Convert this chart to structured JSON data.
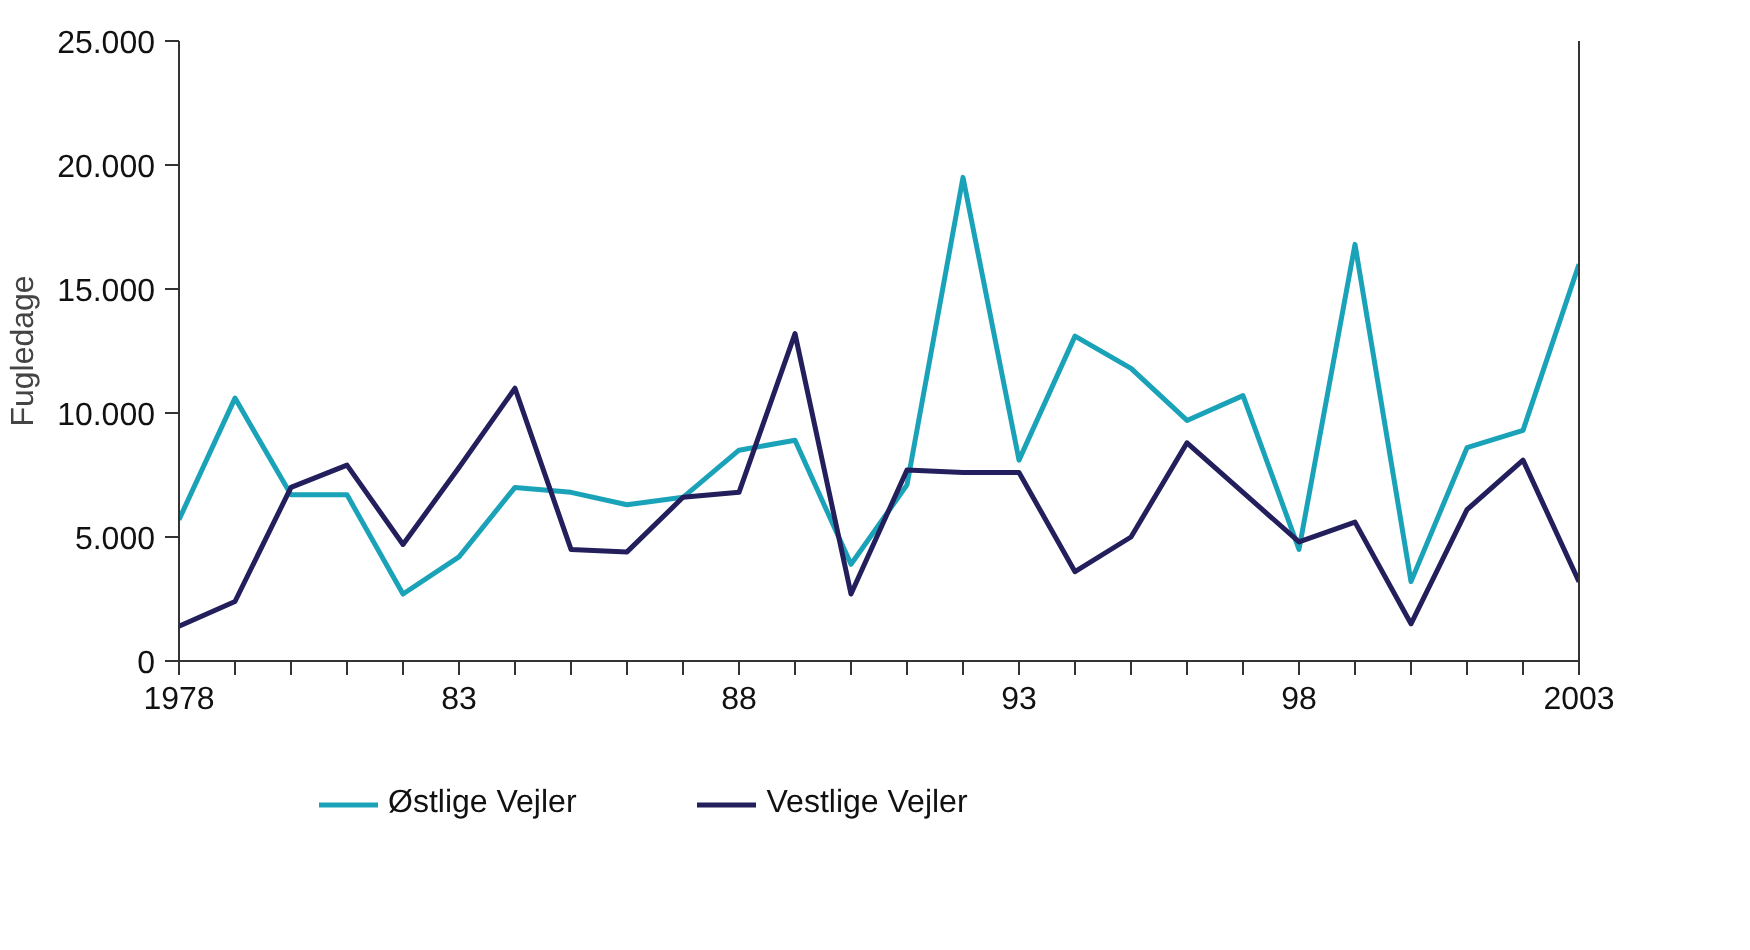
{
  "chart_data": {
    "type": "line",
    "ylabel": "Fugledage",
    "x": [
      1978,
      1979,
      1980,
      1981,
      1982,
      1983,
      1984,
      1985,
      1986,
      1987,
      1988,
      1989,
      1990,
      1991,
      1992,
      1993,
      1994,
      1995,
      1996,
      1997,
      1998,
      1999,
      2000,
      2001,
      2002,
      2003
    ],
    "series": [
      {
        "name": "Østlige Vejler",
        "color": "#1aa3b8",
        "values": [
          5700,
          10600,
          6700,
          6700,
          2700,
          4200,
          7000,
          6800,
          6300,
          6600,
          8500,
          8900,
          3900,
          7100,
          19500,
          8100,
          13100,
          11800,
          9700,
          10700,
          4500,
          16800,
          3200,
          8600,
          9300,
          16000
        ]
      },
      {
        "name": "Vestlige Vejler",
        "color": "#231f5c",
        "values": [
          1400,
          2400,
          7000,
          7900,
          4700,
          7800,
          11000,
          4500,
          4400,
          6600,
          6800,
          13200,
          2700,
          7700,
          7600,
          7600,
          3600,
          5000,
          8800,
          6800,
          4800,
          5600,
          1500,
          6100,
          8100,
          3200
        ]
      }
    ],
    "xlim": [
      1978,
      2003
    ],
    "ylim": [
      0,
      25000
    ],
    "xticks": [
      {
        "value": 1978,
        "label": "1978"
      },
      {
        "value": 1979,
        "label": null
      },
      {
        "value": 1980,
        "label": null
      },
      {
        "value": 1981,
        "label": null
      },
      {
        "value": 1982,
        "label": null
      },
      {
        "value": 1983,
        "label": "83"
      },
      {
        "value": 1984,
        "label": null
      },
      {
        "value": 1985,
        "label": null
      },
      {
        "value": 1986,
        "label": null
      },
      {
        "value": 1987,
        "label": null
      },
      {
        "value": 1988,
        "label": "88"
      },
      {
        "value": 1989,
        "label": null
      },
      {
        "value": 1990,
        "label": null
      },
      {
        "value": 1991,
        "label": null
      },
      {
        "value": 1992,
        "label": null
      },
      {
        "value": 1993,
        "label": "93"
      },
      {
        "value": 1994,
        "label": null
      },
      {
        "value": 1995,
        "label": null
      },
      {
        "value": 1996,
        "label": null
      },
      {
        "value": 1997,
        "label": null
      },
      {
        "value": 1998,
        "label": "98"
      },
      {
        "value": 1999,
        "label": null
      },
      {
        "value": 2000,
        "label": null
      },
      {
        "value": 2001,
        "label": null
      },
      {
        "value": 2002,
        "label": null
      },
      {
        "value": 2003,
        "label": "2003"
      }
    ],
    "yticks": [
      {
        "value": 0,
        "label": "0"
      },
      {
        "value": 5000,
        "label": "5.000"
      },
      {
        "value": 10000,
        "label": "10.000"
      },
      {
        "value": 15000,
        "label": "15.000"
      },
      {
        "value": 20000,
        "label": "20.000"
      },
      {
        "value": 25000,
        "label": "25.000"
      }
    ],
    "grid": false,
    "legend": "bottom",
    "marker": "none",
    "line_style": "solid"
  }
}
